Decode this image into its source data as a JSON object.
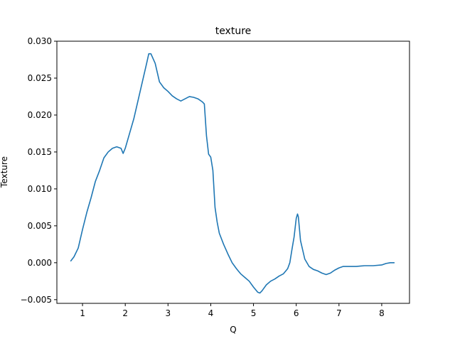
{
  "chart_data": {
    "type": "line",
    "title": "texture",
    "xlabel": "Q",
    "ylabel": "Texture",
    "xlim": [
      0.4,
      8.65
    ],
    "ylim": [
      -0.0055,
      0.03
    ],
    "x_ticks": [
      1,
      2,
      3,
      4,
      5,
      6,
      7,
      8
    ],
    "x_tick_labels": [
      "1",
      "2",
      "3",
      "4",
      "5",
      "6",
      "7",
      "8"
    ],
    "y_ticks": [
      -0.005,
      0.0,
      0.005,
      0.01,
      0.015,
      0.02,
      0.025,
      0.03
    ],
    "y_tick_labels": [
      "−0.005",
      "0.000",
      "0.005",
      "0.010",
      "0.015",
      "0.020",
      "0.025",
      "0.030"
    ],
    "grid": false,
    "series": [
      {
        "color": "#1f77b4",
        "x": [
          0.72,
          0.8,
          0.9,
          1.0,
          1.1,
          1.2,
          1.3,
          1.4,
          1.5,
          1.6,
          1.7,
          1.8,
          1.9,
          1.95,
          2.0,
          2.1,
          2.2,
          2.3,
          2.4,
          2.5,
          2.55,
          2.6,
          2.7,
          2.8,
          2.9,
          3.0,
          3.1,
          3.2,
          3.3,
          3.4,
          3.5,
          3.6,
          3.7,
          3.8,
          3.85,
          3.9,
          3.95,
          4.0,
          4.05,
          4.1,
          4.15,
          4.2,
          4.3,
          4.4,
          4.5,
          4.6,
          4.7,
          4.8,
          4.9,
          5.0,
          5.1,
          5.15,
          5.2,
          5.3,
          5.4,
          5.5,
          5.6,
          5.7,
          5.8,
          5.85,
          5.9,
          5.95,
          6.0,
          6.03,
          6.05,
          6.1,
          6.2,
          6.3,
          6.4,
          6.5,
          6.6,
          6.7,
          6.8,
          6.9,
          7.0,
          7.1,
          7.2,
          7.4,
          7.6,
          7.8,
          8.0,
          8.1,
          8.2,
          8.3
        ],
        "y": [
          0.0002,
          0.0008,
          0.002,
          0.0045,
          0.0068,
          0.0088,
          0.011,
          0.0125,
          0.0142,
          0.015,
          0.0155,
          0.0157,
          0.0155,
          0.0148,
          0.0155,
          0.0175,
          0.0195,
          0.022,
          0.0245,
          0.027,
          0.0283,
          0.0283,
          0.027,
          0.0245,
          0.0237,
          0.0232,
          0.0226,
          0.0222,
          0.0219,
          0.0222,
          0.0225,
          0.0224,
          0.0222,
          0.0218,
          0.0215,
          0.0172,
          0.0147,
          0.0143,
          0.0125,
          0.0075,
          0.0055,
          0.004,
          0.0025,
          0.0012,
          0.0,
          -0.0008,
          -0.0015,
          -0.002,
          -0.0025,
          -0.0033,
          -0.004,
          -0.0041,
          -0.0038,
          -0.003,
          -0.0025,
          -0.0022,
          -0.0018,
          -0.0015,
          -0.0008,
          0.0,
          0.0018,
          0.0035,
          0.006,
          0.0066,
          0.0062,
          0.003,
          0.0005,
          -0.0005,
          -0.0009,
          -0.0011,
          -0.0014,
          -0.0016,
          -0.0014,
          -0.001,
          -0.0007,
          -0.0005,
          -0.0005,
          -0.0005,
          -0.0004,
          -0.0004,
          -0.0003,
          -0.0001,
          0.0,
          0.0
        ]
      }
    ]
  }
}
